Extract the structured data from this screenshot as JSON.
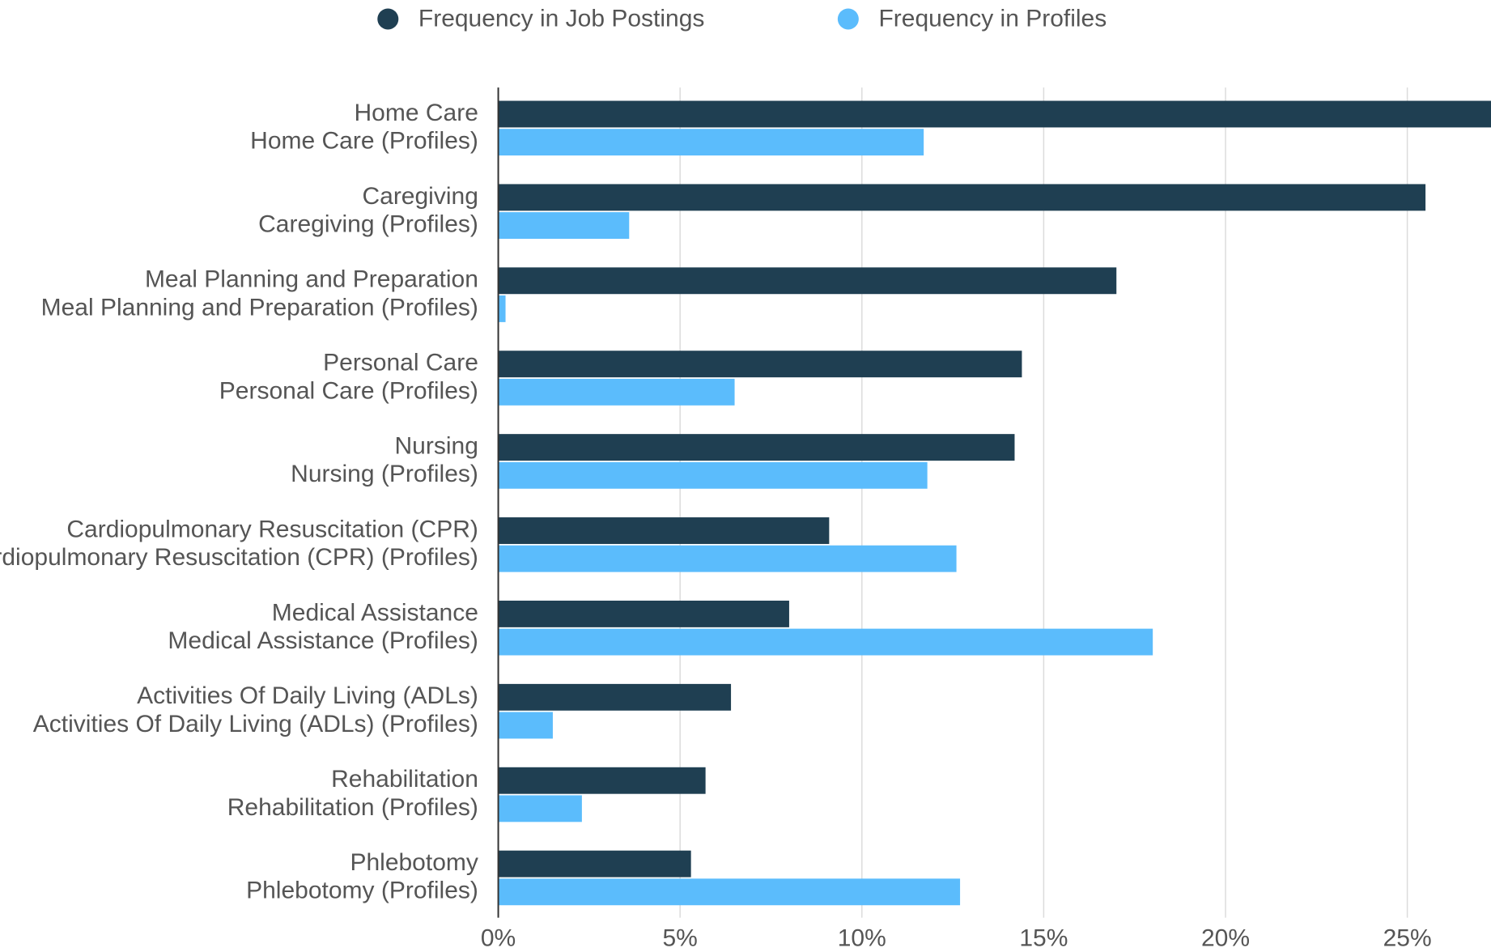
{
  "chart_data": {
    "type": "bar",
    "orientation": "horizontal",
    "series": [
      {
        "name": "Frequency in Job Postings",
        "color": "#1f3f52",
        "labels": [
          "Home Care",
          "Caregiving",
          "Meal Planning and Preparation",
          "Personal Care",
          "Nursing",
          "Cardiopulmonary Resuscitation (CPR)",
          "Medical Assistance",
          "Activities Of Daily Living (ADLs)",
          "Rehabilitation",
          "Phlebotomy"
        ],
        "values": [
          28,
          25.5,
          17.0,
          14.4,
          14.2,
          9.1,
          8.0,
          6.4,
          5.7,
          5.3
        ]
      },
      {
        "name": "Frequency in Profiles",
        "color": "#5bbcfc",
        "labels": [
          "Home Care (Profiles)",
          "Caregiving (Profiles)",
          "Meal Planning and Preparation (Profiles)",
          "Personal Care (Profiles)",
          "Nursing (Profiles)",
          "Cardiopulmonary Resuscitation (CPR) (Profiles)",
          "Medical Assistance (Profiles)",
          "Activities Of Daily Living (ADLs) (Profiles)",
          "Rehabilitation (Profiles)",
          "Phlebotomy (Profiles)"
        ],
        "values": [
          11.7,
          3.6,
          0.2,
          6.5,
          11.8,
          12.6,
          18.0,
          1.5,
          2.3,
          12.7
        ]
      }
    ],
    "xlim": [
      0,
      27.3
    ],
    "xticks": [
      {
        "value": 0,
        "label": "0%"
      },
      {
        "value": 5,
        "label": "5%"
      },
      {
        "value": 10,
        "label": "10%"
      },
      {
        "value": 15,
        "label": "15%"
      },
      {
        "value": 20,
        "label": "20%"
      },
      {
        "value": 25,
        "label": "25%"
      }
    ],
    "grid": true,
    "legend": "top"
  }
}
